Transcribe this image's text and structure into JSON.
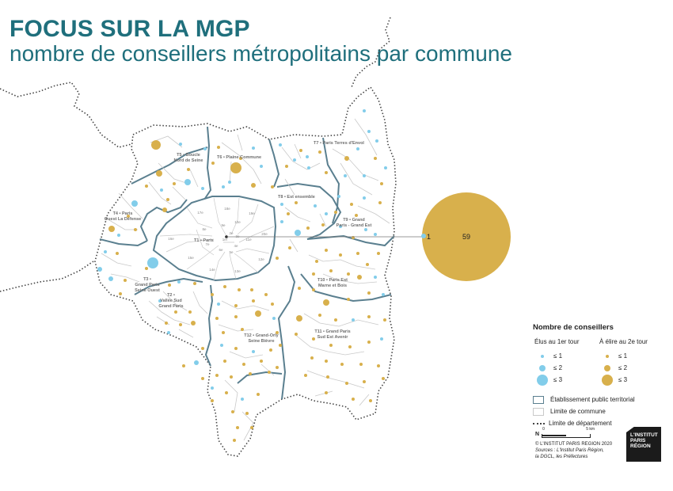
{
  "title": "FOCUS SUR LA MGP",
  "subtitle": "nombre de conseillers métropolitains par commune",
  "colors": {
    "title": "#1f6f7c",
    "elus_1er_tour": "#82cdea",
    "a_elire_2e_tour": "#d8b04c",
    "ept_boundary": "#5a7f8f",
    "commune_boundary": "#c9c9c9",
    "departement_boundary": "#444444"
  },
  "territories": {
    "t1": "T1 • Paris",
    "t2": [
      "T2 •",
      "Vallée Sud",
      "Grand Paris"
    ],
    "t3": [
      "T3 •",
      "Grand Paris",
      "Seine Ouest"
    ],
    "t4": [
      "T4 • Paris",
      "Ouest La Défense"
    ],
    "t5": [
      "T5 • Boucle",
      "Nord de Seine"
    ],
    "t6": "T6 • Plaine Commune",
    "t7": "T7 • Paris Terres d'Envol",
    "t8": "T8 • Est ensemble",
    "t9": [
      "T9 • Grand",
      "Paris - Grand Est"
    ],
    "t10": [
      "T10 • Paris Est",
      "Marne et Bois"
    ],
    "t11": [
      "T11 • Grand Paris",
      "Sud Est Avenir"
    ],
    "t12": [
      "T12 • Grand-Orly",
      "Seine Bièvre"
    ]
  },
  "arrondissements": [
    "1er",
    "2e",
    "3e",
    "4e",
    "5e",
    "6e",
    "7e",
    "8e",
    "9e",
    "10e",
    "11e",
    "12e",
    "13e",
    "14e",
    "15e",
    "16e",
    "17e",
    "18e",
    "19e",
    "20e"
  ],
  "paris_callout": {
    "elus_1er_tour": "1",
    "a_elire_2e_tour": "59"
  },
  "legend": {
    "title": "Nombre de conseillers",
    "col1_head": "Élus au 1er tour",
    "col2_head": "À élire au 2e tour",
    "rows": [
      "≤ 1",
      "≤ 2",
      "≤ 3"
    ],
    "ept": "Établissement public territorial",
    "commune": "Limite de commune",
    "departement": "Limite de département"
  },
  "credits": {
    "north": "N",
    "scale0": "0",
    "scale5": "5 km",
    "copyright": "© L'INSTITUT PARIS REGION 2020",
    "sources1": "Sources : L'Institut Paris Région,",
    "sources2": "la DGCL, les Préfectures"
  },
  "logo": [
    "L'INSTITUT",
    "PARIS",
    "RÉGION"
  ]
}
